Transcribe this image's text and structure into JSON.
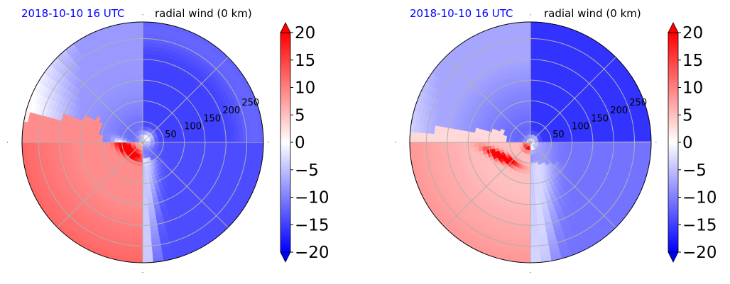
{
  "chart_data": [
    {
      "type": "heatmap",
      "projection": "polar",
      "date_label": "2018-10-10 16 UTC",
      "date_label_color": "#0000ff",
      "title": "radial wind (0 km)",
      "r_ticks": [
        50,
        100,
        150,
        200,
        250
      ],
      "r_max": 290,
      "theta_gridlines_deg": [
        0,
        45,
        90,
        135,
        180,
        225,
        270,
        315
      ],
      "grid": true,
      "colorbar": {
        "min": -20,
        "max": 20,
        "ticks": [
          -20,
          -15,
          -10,
          -5,
          0,
          5,
          10,
          15,
          20
        ],
        "tick_labels": [
          "−20",
          "−15",
          "−10",
          "−5",
          "0",
          "5",
          "10",
          "15",
          "20"
        ],
        "extend": "both",
        "colormap": "bwr",
        "colors": {
          "low": "#0000ff",
          "mid": "#ffffff",
          "high": "#ff0000"
        }
      },
      "field_summary": [
        {
          "sector": "north-east (0-90 deg math)",
          "value": -15
        },
        {
          "sector": "north-west",
          "value": -7
        },
        {
          "sector": "west / south-west",
          "value": 10
        },
        {
          "sector": "south-east",
          "value": -14
        },
        {
          "sector": "core inflow band south-west of centre",
          "value": 18
        }
      ]
    },
    {
      "type": "heatmap",
      "projection": "polar",
      "date_label": "2018-10-10 16 UTC",
      "date_label_color": "#0000ff",
      "title": "radial wind (0 km)",
      "r_ticks": [
        50,
        100,
        150,
        200,
        250
      ],
      "r_max": 290,
      "theta_gridlines_deg": [
        0,
        45,
        90,
        135,
        180,
        225,
        270,
        315
      ],
      "grid": true,
      "colorbar": {
        "min": -20,
        "max": 20,
        "ticks": [
          -20,
          -15,
          -10,
          -5,
          0,
          5,
          10,
          15,
          20
        ],
        "tick_labels": [
          "−20",
          "−15",
          "−10",
          "−5",
          "0",
          "5",
          "10",
          "15",
          "20"
        ],
        "extend": "both",
        "colormap": "bwr",
        "colors": {
          "low": "#0000ff",
          "mid": "#ffffff",
          "high": "#ff0000"
        }
      },
      "field_summary": [
        {
          "sector": "north-east",
          "value": -16
        },
        {
          "sector": "north-west",
          "value": -6
        },
        {
          "sector": "west / south-west",
          "value": 6
        },
        {
          "sector": "south-east",
          "value": -12
        },
        {
          "sector": "narrow inflow band south-west of centre",
          "value": 14
        }
      ]
    }
  ]
}
